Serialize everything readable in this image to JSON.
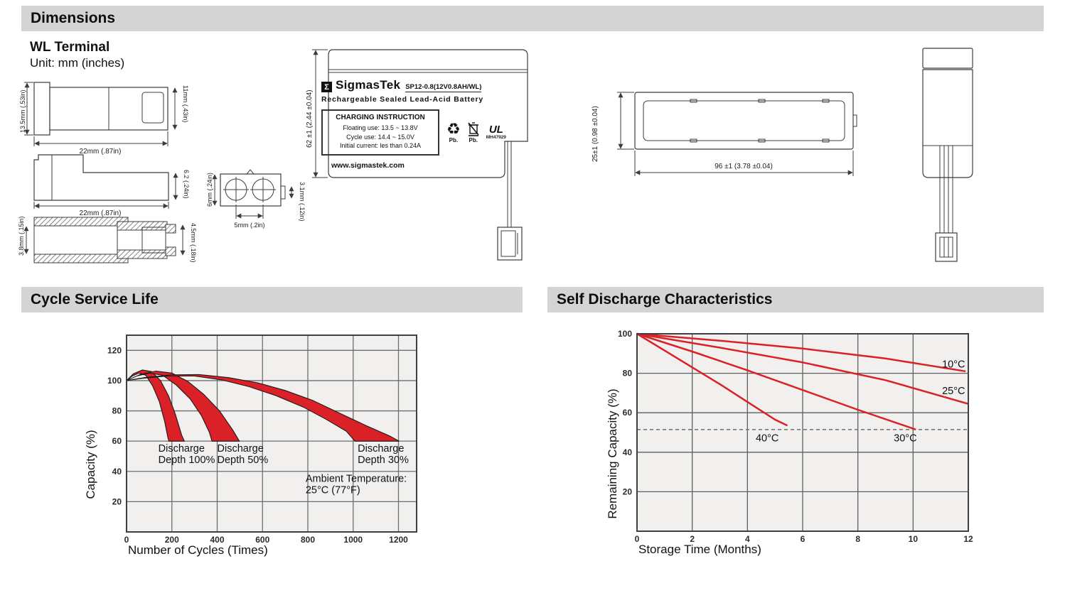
{
  "headers": {
    "dimensions": "Dimensions",
    "cycle": "Cycle Service Life",
    "self_discharge": "Self Discharge Characteristics"
  },
  "dimensions": {
    "subtitle": "WL Terminal",
    "unit_note": "Unit: mm (inches)",
    "terminal_top": {
      "left": "13.5mm (.53in)",
      "right": "11mm (.43in)",
      "bottom": "22mm (.87in)"
    },
    "terminal_side": {
      "right": "6.2 (.24in)",
      "bottom": "22mm (.87in)"
    },
    "terminal_section": {
      "left": "3.8mm (.15in)",
      "right": "4.5mm (.18in)"
    },
    "connector": {
      "left": "6mm (.24in)",
      "right": "3.1mm (.12in)",
      "bottom": "5mm (.2in)"
    },
    "battery_front": {
      "height": "62 ±1 (2.44 ±0.04)",
      "sigma": "Σ",
      "brand": "SigmasTek",
      "model": "SP12-0.8(12V0.8AH/WL)",
      "type_line": "Rechargeable Sealed Lead-Acid Battery",
      "charging_title": "CHARGING INSTRUCTION",
      "charging_line1": "Floating use: 13.5 ~ 13.8V",
      "charging_line2": "Cycle use: 14.4 ~ 15.0V",
      "charging_line3": "Initial current: les than 0.24A",
      "website": "www.sigmastek.com",
      "pb": "Pb.",
      "ul_text": "UL",
      "ul_code": "MH47929",
      "recycle_symbol": "♻"
    },
    "battery_top": {
      "left": "25±1 (0.98 ±0.04)",
      "bottom": "96 ±1 (3.78 ±0.04)"
    }
  },
  "chart_data": [
    {
      "type": "area",
      "title": "Cycle Service Life",
      "xlabel": "Number of Cycles (Times)",
      "ylabel": "Capacity (%)",
      "xlim": [
        0,
        1280
      ],
      "ylim": [
        0,
        130
      ],
      "xticks": [
        0,
        200,
        400,
        600,
        800,
        1000,
        1200
      ],
      "yticks": [
        20,
        40,
        60,
        80,
        100,
        120
      ],
      "xgrid": [
        200,
        400,
        600,
        800,
        1000,
        1200
      ],
      "ygrid": [
        20,
        40,
        60,
        80,
        100,
        120
      ],
      "grid": true,
      "bands": [
        {
          "label": "Discharge Depth 100%",
          "upper": [
            [
              0,
              100
            ],
            [
              30,
              104.5
            ],
            [
              70,
              107
            ],
            [
              110,
              106
            ],
            [
              150,
              100
            ],
            [
              185,
              90
            ],
            [
              215,
              78
            ],
            [
              243,
              64
            ],
            [
              255,
              60
            ]
          ],
          "lower": [
            [
              0,
              100
            ],
            [
              25,
              103
            ],
            [
              55,
              105
            ],
            [
              85,
              103.5
            ],
            [
              115,
              96.5
            ],
            [
              145,
              86
            ],
            [
              168,
              73
            ],
            [
              183,
              62
            ],
            [
              187,
              60
            ]
          ]
        },
        {
          "label": "Discharge Depth 50%",
          "upper": [
            [
              0,
              100
            ],
            [
              60,
              104
            ],
            [
              130,
              106.3
            ],
            [
              200,
              105
            ],
            [
              270,
              99.5
            ],
            [
              340,
              91
            ],
            [
              410,
              80
            ],
            [
              470,
              67
            ],
            [
              498,
              60
            ]
          ],
          "lower": [
            [
              0,
              100
            ],
            [
              45,
              103
            ],
            [
              100,
              105
            ],
            [
              160,
              103.5
            ],
            [
              220,
              97
            ],
            [
              280,
              88
            ],
            [
              330,
              77
            ],
            [
              365,
              66
            ],
            [
              377,
              60
            ]
          ]
        },
        {
          "label": "Discharge Depth 30%",
          "upper": [
            [
              0,
              100
            ],
            [
              80,
              102
            ],
            [
              200,
              103.8
            ],
            [
              320,
              104
            ],
            [
              450,
              102
            ],
            [
              580,
              98.5
            ],
            [
              700,
              93.5
            ],
            [
              820,
              87
            ],
            [
              940,
              78.5
            ],
            [
              1060,
              70
            ],
            [
              1160,
              63.5
            ],
            [
              1203,
              60
            ]
          ],
          "lower": [
            [
              0,
              100
            ],
            [
              70,
              101.5
            ],
            [
              180,
              103
            ],
            [
              300,
              103
            ],
            [
              420,
              100.5
            ],
            [
              540,
              96
            ],
            [
              660,
              90
            ],
            [
              780,
              82.5
            ],
            [
              880,
              74.5
            ],
            [
              970,
              66.5
            ],
            [
              1008,
              60
            ]
          ]
        }
      ],
      "annotations": [
        {
          "text": "Discharge\nDepth 100%",
          "x": 140,
          "y": 53
        },
        {
          "text": "Discharge\nDepth 50%",
          "x": 400,
          "y": 53
        },
        {
          "text": "Discharge\nDepth 30%",
          "x": 1020,
          "y": 53
        },
        {
          "text": "Ambient Temperature:\n25°C (77°F)",
          "x": 790,
          "y": 33
        }
      ],
      "colors": {
        "bg": "#f1f0ee",
        "grid": "#6e6e6e",
        "border": "#3f3f3f",
        "fill": "#da2128",
        "stroke": "#1a1a1a",
        "line": "#da2128"
      }
    },
    {
      "type": "line",
      "title": "Self Discharge Characteristics",
      "xlabel": "Storage Time (Months)",
      "ylabel": "Remaining Capacity (%)",
      "xlim": [
        0,
        12
      ],
      "ylim": [
        0,
        100
      ],
      "xticks": [
        0,
        2,
        4,
        6,
        8,
        10,
        12
      ],
      "yticks": [
        20,
        40,
        60,
        80,
        100
      ],
      "xgrid": [
        2,
        4,
        6,
        8,
        10
      ],
      "ygrid": [
        20,
        40,
        60,
        80
      ],
      "grid": true,
      "dashed_line_y": 51.5,
      "series": [
        {
          "name": "10°C",
          "points": [
            [
              0,
              100
            ],
            [
              3,
              96.5
            ],
            [
              6,
              92.5
            ],
            [
              9,
              87.5
            ],
            [
              11.9,
              81
            ]
          ]
        },
        {
          "name": "25°C",
          "points": [
            [
              0,
              100
            ],
            [
              3,
              93
            ],
            [
              6,
              85.5
            ],
            [
              9,
              76.5
            ],
            [
              12,
              64.5
            ]
          ]
        },
        {
          "name": "30°C",
          "points": [
            [
              0,
              100
            ],
            [
              2,
              91
            ],
            [
              4,
              81.5
            ],
            [
              6,
              71.5
            ],
            [
              8,
              61.5
            ],
            [
              10.1,
              51.5
            ]
          ]
        },
        {
          "name": "40°C",
          "points": [
            [
              0,
              100
            ],
            [
              1,
              91.5
            ],
            [
              2,
              83
            ],
            [
              3,
              74.5
            ],
            [
              4,
              65.5
            ],
            [
              5,
              56.5
            ],
            [
              5.45,
              53.5
            ]
          ]
        }
      ],
      "annotations": [
        {
          "text": "10°C",
          "x": 11.05,
          "y": 83
        },
        {
          "text": "25°C",
          "x": 11.05,
          "y": 69.5
        },
        {
          "text": "40°C",
          "x": 4.3,
          "y": 45.5
        },
        {
          "text": "30°C",
          "x": 9.3,
          "y": 45.5
        }
      ],
      "colors": {
        "bg": "#f1f0ee",
        "grid": "#5f5f5f",
        "border": "#3f3f3f",
        "line": "#da2128"
      }
    }
  ]
}
